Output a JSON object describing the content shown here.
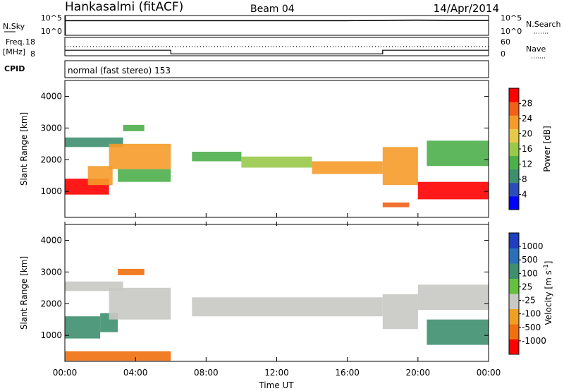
{
  "header": {
    "station": "Hankasalmi (fitACF)",
    "beam": "Beam 04",
    "date": "14/Apr/2014"
  },
  "noise_panel": {
    "left_label": "N.Sky",
    "right_label": "N.Search",
    "left_ticks": [
      "10^5",
      "10^0"
    ],
    "right_ticks": [
      "10^5",
      "10^0"
    ]
  },
  "freq_panel": {
    "left_label_1": "Freq.",
    "left_label_2": "[MHz]",
    "left_ticks": [
      "18",
      "8"
    ],
    "right_label": "Nave",
    "right_ticks": [
      "60",
      "0"
    ]
  },
  "cpid": {
    "label": "CPID",
    "mode": "normal (fast stereo) 153"
  },
  "power_panel": {
    "ylabel": "Slant Range [km]",
    "yticks": [
      "4000",
      "3000",
      "2000",
      "1000"
    ],
    "colorbar_label": "Power [dB]",
    "colorbar_ticks": [
      "28",
      "24",
      "20",
      "16",
      "12",
      "8",
      "4"
    ],
    "colors": [
      "#0000ff",
      "#2c4cb8",
      "#3f8f6f",
      "#4daf4a",
      "#99c94a",
      "#e8c84a",
      "#f59b2a",
      "#f06018",
      "#ff0000"
    ]
  },
  "velocity_panel": {
    "ylabel": "Slant Range [km]",
    "yticks": [
      "4000",
      "3000",
      "2000",
      "1000"
    ],
    "colorbar_label": "Velocity [m s-1]",
    "colorbar_ticks": [
      "1000",
      "500",
      "100",
      "25",
      "-25",
      "-100",
      "-500",
      "-1000"
    ],
    "colors": [
      "#1f3fbf",
      "#2c6fb8",
      "#3f8f6f",
      "#66c040",
      "#c8c8c4",
      "#f0a020",
      "#f07010",
      "#ff0000"
    ]
  },
  "xaxis": {
    "label": "Time UT",
    "ticks": [
      "00:00",
      "04:00",
      "08:00",
      "12:00",
      "16:00",
      "20:00",
      "00:00"
    ]
  },
  "chart_data": [
    {
      "type": "line",
      "title": "",
      "xlabel": "",
      "ylabel": "N.Sky",
      "x_range": [
        "00:00",
        "24:00"
      ],
      "y_scale": "log",
      "ylim": [
        1,
        100000
      ],
      "series": [
        {
          "name": "N.Sky",
          "x": [
            0,
            2,
            4,
            6,
            8,
            10,
            12,
            14,
            16,
            18,
            20,
            22,
            24
          ],
          "values": [
            5000,
            5000,
            5000,
            5000,
            5000,
            5000,
            5000,
            5000,
            5000,
            6000,
            6500,
            6000,
            6000
          ]
        }
      ]
    },
    {
      "type": "line",
      "title": "",
      "xlabel": "",
      "ylabel": "Freq. [MHz]",
      "y2label": "Nave",
      "x_range": [
        "00:00",
        "24:00"
      ],
      "ylim": [
        8,
        18
      ],
      "y2lim": [
        0,
        60
      ],
      "series": [
        {
          "name": "Freq.",
          "x": [
            0,
            6,
            6,
            18,
            18,
            24
          ],
          "values": [
            11,
            11,
            9,
            9,
            11,
            11
          ]
        },
        {
          "name": "Nave",
          "x": [
            0,
            4,
            8,
            12,
            16,
            20,
            24
          ],
          "values": [
            30,
            30,
            30,
            30,
            30,
            30,
            30
          ]
        }
      ]
    },
    {
      "type": "heatmap",
      "title": "Power [dB]",
      "xlabel": "Time UT",
      "ylabel": "Slant Range [km]",
      "x_range": [
        "00:00",
        "24:00"
      ],
      "ylim": [
        180,
        4500
      ],
      "z_range": [
        0,
        30
      ],
      "regions": [
        {
          "t0": 0.0,
          "t1": 3.3,
          "r0": 2400,
          "r1": 2700,
          "z": 8
        },
        {
          "t0": 0.0,
          "t1": 2.5,
          "r0": 900,
          "r1": 1400,
          "z": 28
        },
        {
          "t0": 1.3,
          "t1": 2.7,
          "r0": 1200,
          "r1": 1800,
          "z": 22
        },
        {
          "t0": 2.5,
          "t1": 6.0,
          "r0": 1700,
          "r1": 2500,
          "z": 22
        },
        {
          "t0": 3.0,
          "t1": 6.0,
          "r0": 1300,
          "r1": 1700,
          "z": 10
        },
        {
          "t0": 3.3,
          "t1": 4.5,
          "r0": 2900,
          "r1": 3100,
          "z": 10
        },
        {
          "t0": 7.2,
          "t1": 10.0,
          "r0": 1950,
          "r1": 2250,
          "z": 12
        },
        {
          "t0": 10.0,
          "t1": 14.0,
          "r0": 1750,
          "r1": 2100,
          "z": 16
        },
        {
          "t0": 14.0,
          "t1": 18.0,
          "r0": 1550,
          "r1": 1950,
          "z": 20
        },
        {
          "t0": 18.0,
          "t1": 20.0,
          "r0": 1200,
          "r1": 2400,
          "z": 22
        },
        {
          "t0": 20.0,
          "t1": 24.0,
          "r0": 750,
          "r1": 1300,
          "z": 28
        },
        {
          "t0": 20.5,
          "t1": 24.0,
          "r0": 1800,
          "r1": 2600,
          "z": 12
        },
        {
          "t0": 18.0,
          "t1": 19.5,
          "r0": 500,
          "r1": 650,
          "z": 26
        }
      ]
    },
    {
      "type": "heatmap",
      "title": "Velocity [m s-1]",
      "xlabel": "Time UT",
      "ylabel": "Slant Range [km]",
      "x_range": [
        "00:00",
        "24:00"
      ],
      "ylim": [
        180,
        4500
      ],
      "z_range": [
        -1000,
        1000
      ],
      "regions": [
        {
          "t0": 0.0,
          "t1": 3.3,
          "r0": 2400,
          "r1": 2700,
          "z": 0
        },
        {
          "t0": 0.0,
          "t1": 2.0,
          "r0": 900,
          "r1": 1600,
          "z": 200
        },
        {
          "t0": 2.0,
          "t1": 3.0,
          "r0": 1100,
          "r1": 1700,
          "z": 100
        },
        {
          "t0": 2.5,
          "t1": 6.0,
          "r0": 1500,
          "r1": 2500,
          "z": 0
        },
        {
          "t0": 3.0,
          "t1": 4.5,
          "r0": 2900,
          "r1": 3100,
          "z": -300
        },
        {
          "t0": 7.2,
          "t1": 18.0,
          "r0": 1600,
          "r1": 2200,
          "z": 0
        },
        {
          "t0": 18.0,
          "t1": 20.0,
          "r0": 1200,
          "r1": 2300,
          "z": 0
        },
        {
          "t0": 20.5,
          "t1": 24.0,
          "r0": 700,
          "r1": 1500,
          "z": 150
        },
        {
          "t0": 20.0,
          "t1": 24.0,
          "r0": 1800,
          "r1": 2600,
          "z": 0
        },
        {
          "t0": 0.0,
          "t1": 6.0,
          "r0": 200,
          "r1": 500,
          "z": -200
        }
      ]
    }
  ]
}
